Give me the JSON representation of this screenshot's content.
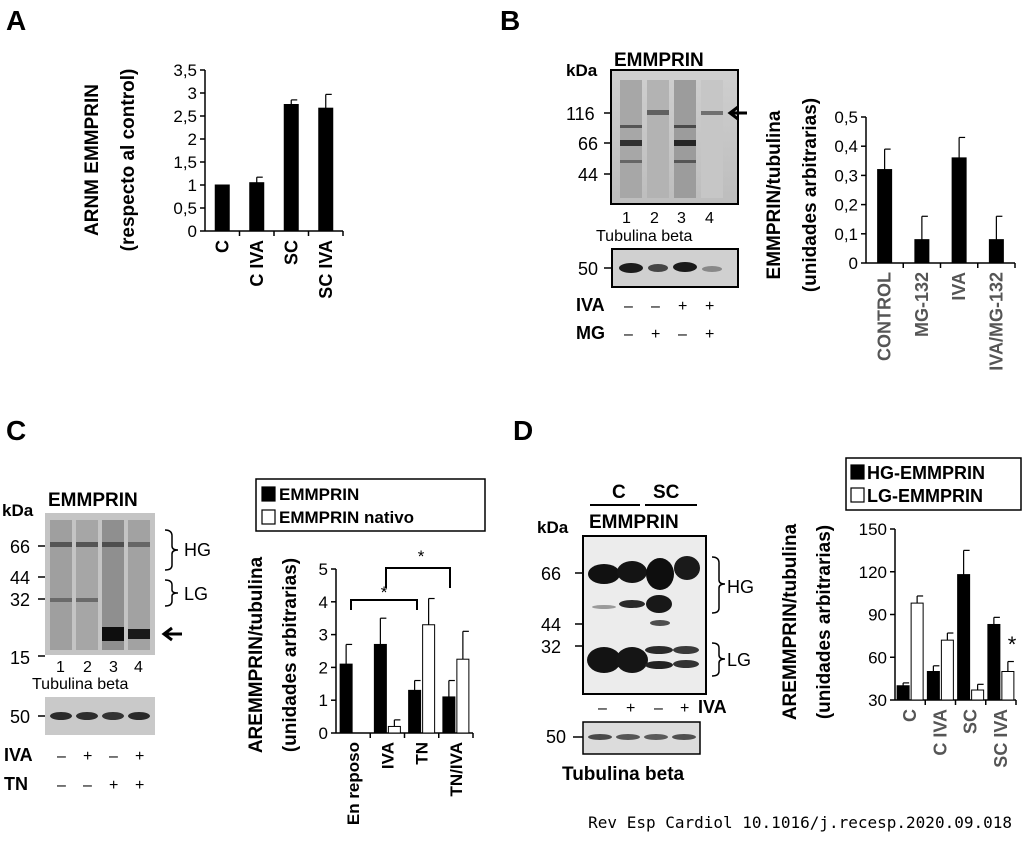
{
  "panels": {
    "A": {
      "letter": "A"
    },
    "B": {
      "letter": "B",
      "blot_title": "EMMPRIN",
      "kda": "kDa",
      "markers": [
        "116",
        "66",
        "44"
      ],
      "lanes": [
        "1",
        "2",
        "3",
        "4"
      ],
      "loading_title": "Tubulina beta",
      "loading_marker": "50",
      "row1_label": "IVA",
      "row1": [
        "–",
        "–",
        "+",
        "+"
      ],
      "row2_label": "MG",
      "row2": [
        "–",
        "+",
        "–",
        "+"
      ]
    },
    "C": {
      "letter": "C",
      "blot_title": "EMMPRIN",
      "kda": "kDa",
      "markers": [
        "66",
        "44",
        "32",
        "15"
      ],
      "bracket_hg": "HG",
      "bracket_lg": "LG",
      "lanes": [
        "1",
        "2",
        "3",
        "4"
      ],
      "loading_title": "Tubulina beta",
      "loading_marker": "50",
      "row1_label": "IVA",
      "row1": [
        "–",
        "+",
        "–",
        "+"
      ],
      "row2_label": "TN",
      "row2": [
        "–",
        "–",
        "+",
        "+"
      ]
    },
    "D": {
      "letter": "D",
      "group_c": "C",
      "group_sc": "SC",
      "blot_title": "EMMPRIN",
      "kda": "kDa",
      "markers": [
        "66",
        "44",
        "32"
      ],
      "bracket_hg": "HG",
      "bracket_lg": "LG",
      "row_label": "IVA",
      "row": [
        "–",
        "+",
        "–",
        "+"
      ],
      "loading_marker": "50",
      "loading_title": "Tubulina beta"
    }
  },
  "footer": "Rev Esp Cardiol 10.1016/j.recesp.2020.09.018",
  "chart_data": [
    {
      "id": "A",
      "type": "bar",
      "categories": [
        "C",
        "C IVA",
        "SC",
        "SC IVA"
      ],
      "series": [
        {
          "values": [
            1.0,
            1.05,
            2.75,
            2.67
          ],
          "errors": [
            0.0,
            0.12,
            0.1,
            0.3
          ],
          "color": "#000000"
        }
      ],
      "ylabel": [
        "ARNM EMMPRIN",
        "(respecto al control)"
      ],
      "ylim": [
        0,
        3.5
      ],
      "yticks": [
        "0",
        "0,5",
        "1",
        "1,5",
        "2",
        "2,5",
        "3",
        "3,5"
      ]
    },
    {
      "id": "B",
      "type": "bar",
      "categories": [
        "CONTROL",
        "MG-132",
        "IVA",
        "IVA/MG-132"
      ],
      "series": [
        {
          "values": [
            0.32,
            0.08,
            0.36,
            0.08
          ],
          "errors": [
            0.07,
            0.08,
            0.07,
            0.08
          ],
          "color": "#000000"
        }
      ],
      "ylabel": [
        "EMMPRIN/tubulina",
        "(unidades arbitrarias)"
      ],
      "ylim": [
        0,
        0.5
      ],
      "yticks": [
        "0",
        "0,1",
        "0,2",
        "0,3",
        "0,4",
        "0,5"
      ]
    },
    {
      "id": "C",
      "type": "bar",
      "categories": [
        "En reposo",
        "IVA",
        "TN",
        "TN/IVA"
      ],
      "series": [
        {
          "name": "EMMPRIN",
          "values": [
            2.1,
            2.7,
            1.3,
            1.1
          ],
          "errors": [
            0.6,
            0.8,
            0.3,
            0.5
          ],
          "color": "#000000"
        },
        {
          "name": "EMMPRIN nativo",
          "values": [
            0.0,
            0.2,
            3.3,
            2.25
          ],
          "errors": [
            0.0,
            0.2,
            0.8,
            0.85
          ],
          "color": "#ffffff"
        }
      ],
      "ylabel": [
        "AREMMPRIN/tubulina",
        "(unidades arbitrarias)"
      ],
      "ylim": [
        0,
        5
      ],
      "yticks": [
        "0",
        "1",
        "2",
        "3",
        "4",
        "5"
      ],
      "significance": [
        "*",
        "*"
      ]
    },
    {
      "id": "D",
      "type": "bar",
      "categories": [
        "C",
        "C IVA",
        "SC",
        "SC IVA"
      ],
      "series": [
        {
          "name": "HG-EMMPRIN",
          "values": [
            40,
            50,
            118,
            83
          ],
          "errors": [
            2,
            4,
            17,
            5
          ],
          "color": "#000000"
        },
        {
          "name": "LG-EMMPRIN",
          "values": [
            98,
            72,
            37,
            50
          ],
          "errors": [
            5,
            5,
            4,
            7
          ],
          "color": "#ffffff"
        }
      ],
      "ylabel": [
        "AREMMPRIN/tubulina",
        "(unidades arbitrarias)"
      ],
      "ylim": [
        30,
        150
      ],
      "yticks": [
        "30",
        "60",
        "90",
        "120",
        "150"
      ],
      "significance": [
        "*"
      ]
    }
  ]
}
